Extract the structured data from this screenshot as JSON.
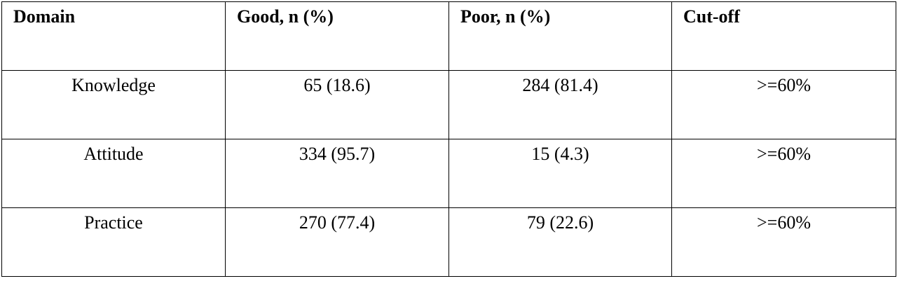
{
  "table": {
    "header": [
      "Domain",
      "Good, n (%)",
      "Poor, n (%)",
      "Cut-off"
    ],
    "rows": [
      [
        "Knowledge",
        "65 (18.6)",
        "284 (81.4)",
        ">=60%"
      ],
      [
        "Attitude",
        "334 (95.7)",
        "15 (4.3)",
        ">=60%"
      ],
      [
        "Practice",
        "270 (77.4)",
        "79 (22.6)",
        ">=60%"
      ]
    ]
  }
}
